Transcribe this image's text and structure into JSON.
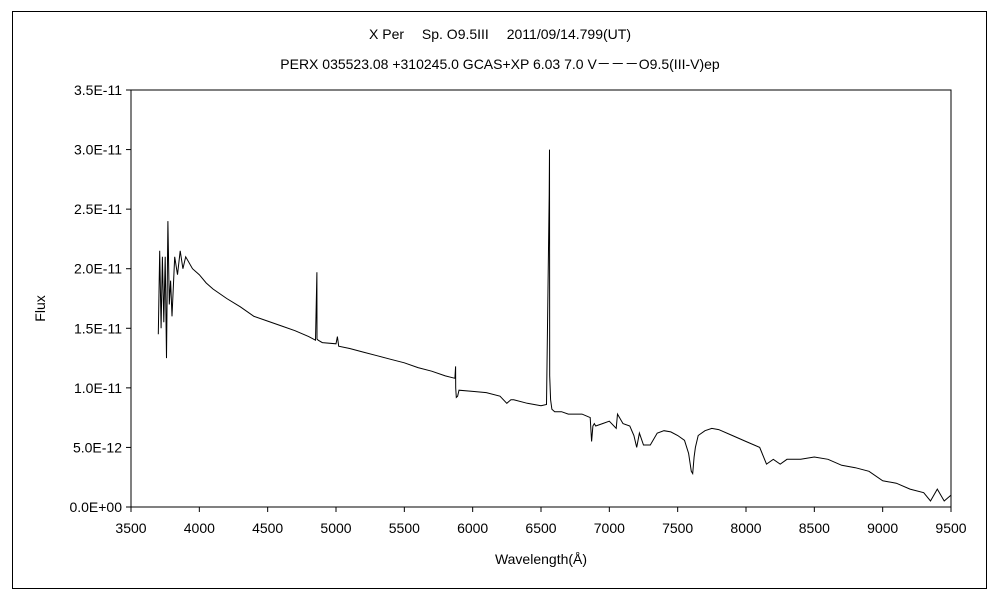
{
  "chart_data": {
    "type": "line",
    "title": "X Per　 Sp. O9.5III　 2011/09/14.799(UT)",
    "subtitle": "PERX 035523.08 +310245.0 GCAS+XP 6.03 7.0 V－－－O9.5(III-V)ep",
    "xlabel": "Wavelength(Å)",
    "ylabel": "Flux",
    "xlim": [
      3500,
      9500
    ],
    "ylim": [
      0,
      3.5e-11
    ],
    "x_ticks": [
      3500,
      4000,
      4500,
      5000,
      5500,
      6000,
      6500,
      7000,
      7500,
      8000,
      8500,
      9000,
      9500
    ],
    "x_tick_labels": [
      "3500",
      "4000",
      "4500",
      "5000",
      "5500",
      "6000",
      "6500",
      "7000",
      "7500",
      "8000",
      "8500",
      "9000",
      "9500"
    ],
    "y_ticks": [
      0,
      5e-12,
      1e-11,
      1.5e-11,
      2e-11,
      2.5e-11,
      3e-11,
      3.5e-11
    ],
    "y_tick_labels": [
      "0.0E+00",
      "5.0E-12",
      "1.0E-11",
      "1.5E-11",
      "2.0E-11",
      "2.5E-11",
      "3.0E-11",
      "3.5E-11"
    ],
    "grid": false,
    "legend": false,
    "line_color": "#000000",
    "series": [
      {
        "x": [
          3700,
          3710,
          3720,
          3730,
          3740,
          3750,
          3760,
          3770,
          3780,
          3790,
          3800,
          3820,
          3840,
          3860,
          3880,
          3900,
          3950,
          4000,
          4050,
          4100,
          4200,
          4300,
          4400,
          4500,
          4600,
          4700,
          4800,
          4850,
          4860,
          4861,
          4870,
          4900,
          5000,
          5010,
          5020,
          5100,
          5200,
          5300,
          5400,
          5500,
          5600,
          5700,
          5800,
          5870,
          5875,
          5876,
          5880,
          5890,
          5900,
          6000,
          6100,
          6200,
          6250,
          6280,
          6300,
          6400,
          6500,
          6540,
          6560,
          6562,
          6564,
          6570,
          6580,
          6600,
          6650,
          6700,
          6800,
          6860,
          6870,
          6880,
          6890,
          6900,
          6950,
          7000,
          7050,
          7060,
          7100,
          7150,
          7180,
          7200,
          7220,
          7250,
          7300,
          7350,
          7400,
          7450,
          7500,
          7550,
          7580,
          7600,
          7610,
          7620,
          7630,
          7650,
          7700,
          7750,
          7800,
          7900,
          8000,
          8100,
          8150,
          8200,
          8250,
          8300,
          8400,
          8500,
          8600,
          8700,
          8800,
          8900,
          9000,
          9100,
          9200,
          9300,
          9350,
          9400,
          9450,
          9500
        ],
        "y": [
          1.45e-11,
          2.15e-11,
          1.5e-11,
          2.1e-11,
          1.55e-11,
          2.1e-11,
          1.25e-11,
          2.4e-11,
          1.7e-11,
          1.9e-11,
          1.6e-11,
          2.1e-11,
          1.95e-11,
          2.15e-11,
          2e-11,
          2.1e-11,
          2e-11,
          1.95e-11,
          1.88e-11,
          1.83e-11,
          1.75e-11,
          1.68e-11,
          1.6e-11,
          1.56e-11,
          1.52e-11,
          1.48e-11,
          1.43e-11,
          1.4e-11,
          1.97e-11,
          1.41e-11,
          1.4e-11,
          1.38e-11,
          1.37e-11,
          1.43e-11,
          1.35e-11,
          1.33e-11,
          1.3e-11,
          1.27e-11,
          1.24e-11,
          1.21e-11,
          1.17e-11,
          1.14e-11,
          1.1e-11,
          1.08e-11,
          1.18e-11,
          1e-11,
          9.2e-12,
          9.3e-12,
          9.8e-12,
          9.7e-12,
          9.6e-12,
          9.3e-12,
          8.7e-12,
          9e-12,
          9e-12,
          8.7e-12,
          8.5e-12,
          8.6e-12,
          2.62e-11,
          3e-11,
          1.1e-11,
          9e-12,
          8.2e-12,
          8e-12,
          8e-12,
          7.8e-12,
          7.8e-12,
          7.5e-12,
          5.5e-12,
          6.8e-12,
          7e-12,
          6.8e-12,
          7e-12,
          7.2e-12,
          6.6e-12,
          7.8e-12,
          7e-12,
          6.8e-12,
          6e-12,
          5e-12,
          6.2e-12,
          5.2e-12,
          5.2e-12,
          6.2e-12,
          6.4e-12,
          6.3e-12,
          6e-12,
          5.6e-12,
          4.5e-12,
          3e-12,
          2.8e-12,
          4.2e-12,
          5e-12,
          6e-12,
          6.4e-12,
          6.6e-12,
          6.5e-12,
          6e-12,
          5.5e-12,
          5e-12,
          3.6e-12,
          4e-12,
          3.6e-12,
          4e-12,
          4e-12,
          4.2e-12,
          4e-12,
          3.5e-12,
          3.3e-12,
          3e-12,
          2.2e-12,
          2e-12,
          1.5e-12,
          1.2e-12,
          5e-13,
          1.5e-12,
          5e-13,
          1e-12
        ]
      }
    ]
  }
}
